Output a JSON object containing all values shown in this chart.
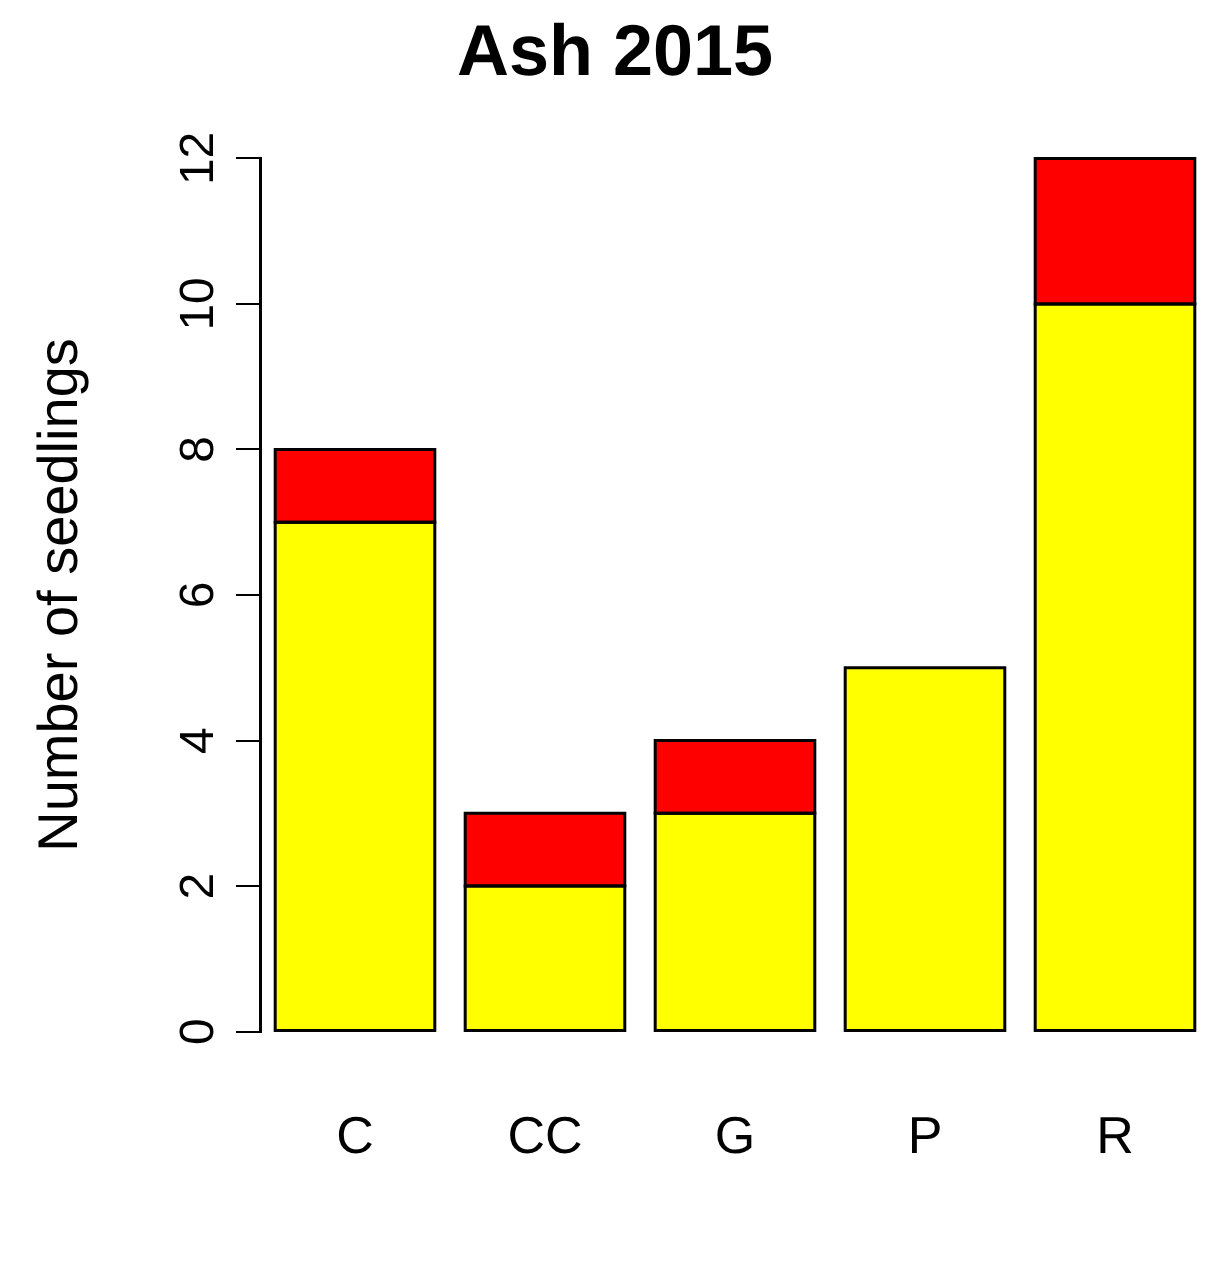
{
  "chart_data": {
    "type": "bar",
    "title": "Ash 2015",
    "ylabel": "Number of seedlings",
    "categories": [
      "C",
      "CC",
      "G",
      "P",
      "R"
    ],
    "stacked": true,
    "series": [
      {
        "color": "#ffff00",
        "values": [
          7,
          2,
          3,
          5,
          10
        ]
      },
      {
        "color": "#ff0000",
        "values": [
          1,
          1,
          1,
          0,
          2
        ]
      }
    ],
    "ylim": [
      0,
      12
    ],
    "yticks": [
      0,
      2,
      4,
      6,
      8,
      10,
      12
    ],
    "grid": false,
    "legend": false
  }
}
